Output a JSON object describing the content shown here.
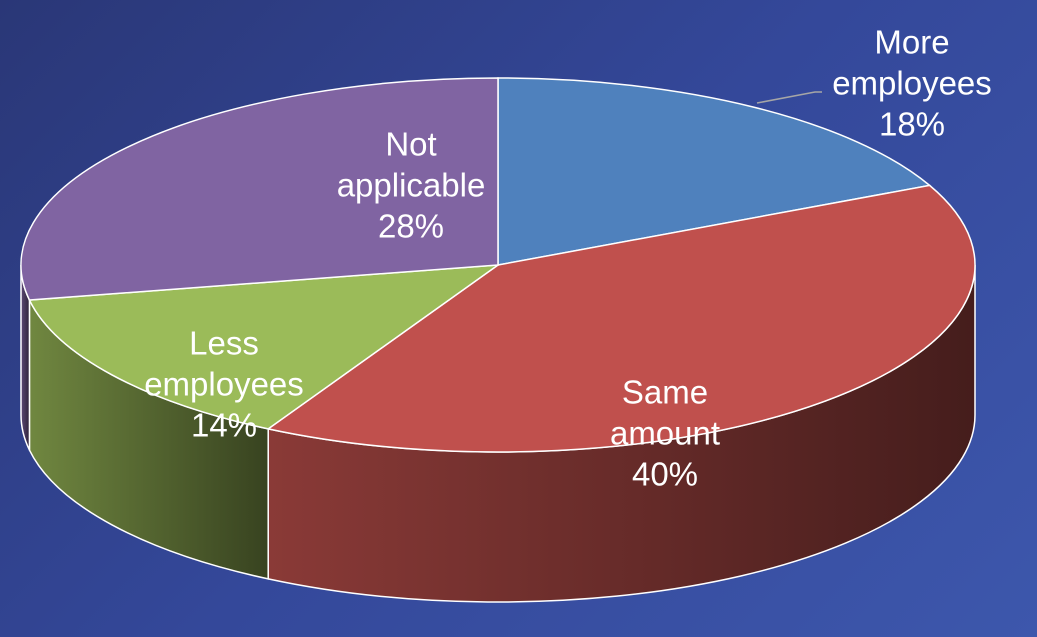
{
  "chart_data": {
    "type": "pie",
    "categories": [
      "More employees",
      "Same amount",
      "Less employees",
      "Not applicable"
    ],
    "values": [
      18,
      40,
      14,
      28
    ],
    "value_labels": [
      "18%",
      "40%",
      "14%",
      "28%"
    ],
    "colors": [
      "#4f81bd",
      "#c0504d",
      "#9bbb59",
      "#8064a2"
    ]
  }
}
